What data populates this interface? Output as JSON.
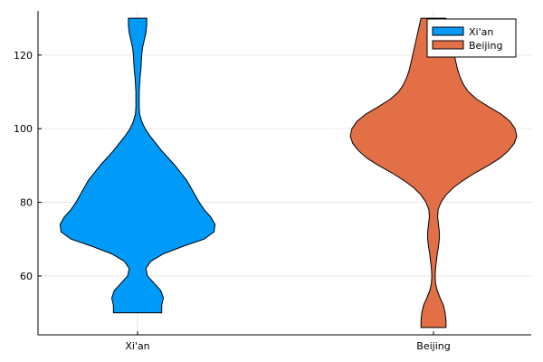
{
  "chart_data": {
    "type": "violin",
    "categories": [
      "Xi'an",
      "Beijing"
    ],
    "ylim": [
      44,
      132
    ],
    "yticks": [
      60,
      80,
      100,
      120
    ],
    "grid": true,
    "legend": "top-right",
    "series": [
      {
        "name": "Xi'an",
        "color": "#009af9",
        "min": 50,
        "max": 130,
        "profile": [
          [
            50,
            0.29
          ],
          [
            52,
            0.29
          ],
          [
            54,
            0.31
          ],
          [
            56,
            0.28
          ],
          [
            58,
            0.2
          ],
          [
            60,
            0.12
          ],
          [
            62,
            0.1
          ],
          [
            64,
            0.16
          ],
          [
            66,
            0.31
          ],
          [
            68,
            0.54
          ],
          [
            70,
            0.8
          ],
          [
            72,
            0.92
          ],
          [
            74,
            0.93
          ],
          [
            76,
            0.88
          ],
          [
            78,
            0.8
          ],
          [
            80,
            0.74
          ],
          [
            82,
            0.69
          ],
          [
            84,
            0.64
          ],
          [
            86,
            0.59
          ],
          [
            88,
            0.52
          ],
          [
            90,
            0.45
          ],
          [
            92,
            0.37
          ],
          [
            94,
            0.29
          ],
          [
            96,
            0.22
          ],
          [
            98,
            0.15
          ],
          [
            100,
            0.09
          ],
          [
            102,
            0.05
          ],
          [
            104,
            0.025
          ],
          [
            106,
            0.02
          ],
          [
            108,
            0.02
          ],
          [
            110,
            0.02
          ],
          [
            112,
            0.025
          ],
          [
            114,
            0.03
          ],
          [
            116,
            0.04
          ],
          [
            118,
            0.045
          ],
          [
            120,
            0.05
          ],
          [
            122,
            0.06
          ],
          [
            124,
            0.08
          ],
          [
            126,
            0.1
          ],
          [
            128,
            0.11
          ],
          [
            130,
            0.11
          ]
        ]
      },
      {
        "name": "Beijing",
        "color": "#e26f46",
        "min": 46,
        "max": 130,
        "profile": [
          [
            46,
            0.15
          ],
          [
            48,
            0.15
          ],
          [
            50,
            0.14
          ],
          [
            52,
            0.12
          ],
          [
            54,
            0.08
          ],
          [
            56,
            0.045
          ],
          [
            58,
            0.025
          ],
          [
            60,
            0.02
          ],
          [
            62,
            0.025
          ],
          [
            64,
            0.035
          ],
          [
            66,
            0.045
          ],
          [
            68,
            0.06
          ],
          [
            70,
            0.07
          ],
          [
            72,
            0.07
          ],
          [
            74,
            0.06
          ],
          [
            76,
            0.05
          ],
          [
            78,
            0.055
          ],
          [
            80,
            0.09
          ],
          [
            82,
            0.15
          ],
          [
            84,
            0.24
          ],
          [
            86,
            0.36
          ],
          [
            88,
            0.5
          ],
          [
            90,
            0.66
          ],
          [
            92,
            0.8
          ],
          [
            94,
            0.9
          ],
          [
            96,
            0.97
          ],
          [
            98,
            1.0
          ],
          [
            100,
            0.98
          ],
          [
            102,
            0.92
          ],
          [
            104,
            0.81
          ],
          [
            106,
            0.66
          ],
          [
            108,
            0.52
          ],
          [
            110,
            0.42
          ],
          [
            112,
            0.36
          ],
          [
            114,
            0.32
          ],
          [
            116,
            0.29
          ],
          [
            118,
            0.27
          ],
          [
            120,
            0.25
          ],
          [
            122,
            0.23
          ],
          [
            124,
            0.21
          ],
          [
            126,
            0.19
          ],
          [
            128,
            0.17
          ],
          [
            130,
            0.15
          ]
        ]
      }
    ]
  }
}
